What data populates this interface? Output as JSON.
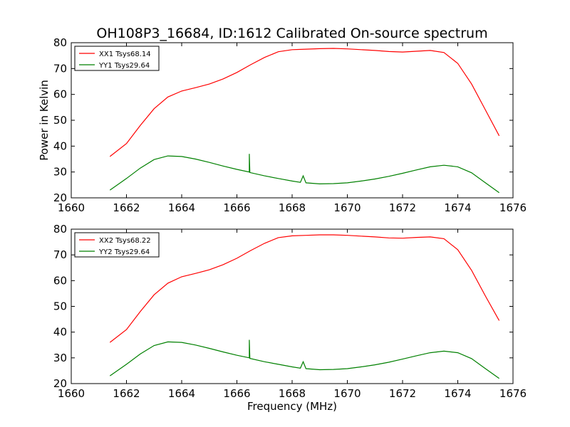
{
  "chart_data": {
    "type": "line",
    "title": "OH108P3_16684, ID:1612 Calibrated On-source spectrum",
    "xlabel": "Frequency (MHz)",
    "ylabel": "Power in Kelvin",
    "xlim": [
      1660,
      1676
    ],
    "ylim": [
      20,
      80
    ],
    "x_ticks": [
      1660,
      1662,
      1664,
      1666,
      1668,
      1670,
      1672,
      1674,
      1676
    ],
    "y_ticks": [
      20,
      30,
      40,
      50,
      60,
      70,
      80
    ],
    "grid": false,
    "legend_position": "upper-left",
    "panels": [
      {
        "series": [
          {
            "name": "XX1 Tsys68.14",
            "color": "#ff0000",
            "points": [
              [
                1661.4,
                36.0
              ],
              [
                1662.0,
                41.0
              ],
              [
                1662.5,
                48.0
              ],
              [
                1663.0,
                54.5
              ],
              [
                1663.5,
                59.0
              ],
              [
                1664.0,
                61.3
              ],
              [
                1664.5,
                62.6
              ],
              [
                1665.0,
                64.0
              ],
              [
                1665.5,
                66.0
              ],
              [
                1666.0,
                68.5
              ],
              [
                1666.5,
                71.5
              ],
              [
                1667.0,
                74.3
              ],
              [
                1667.5,
                76.5
              ],
              [
                1668.0,
                77.3
              ],
              [
                1668.5,
                77.5
              ],
              [
                1669.0,
                77.7
              ],
              [
                1669.5,
                77.8
              ],
              [
                1670.0,
                77.6
              ],
              [
                1670.5,
                77.3
              ],
              [
                1671.0,
                77.0
              ],
              [
                1671.5,
                76.6
              ],
              [
                1672.0,
                76.4
              ],
              [
                1672.5,
                76.7
              ],
              [
                1673.0,
                77.0
              ],
              [
                1673.5,
                76.2
              ],
              [
                1674.0,
                72.0
              ],
              [
                1674.5,
                64.0
              ],
              [
                1675.0,
                54.0
              ],
              [
                1675.5,
                44.0
              ]
            ]
          },
          {
            "name": "YY1 Tsys29.64",
            "color": "#008000",
            "points": [
              [
                1661.4,
                23.0
              ],
              [
                1662.0,
                27.5
              ],
              [
                1662.5,
                31.5
              ],
              [
                1663.0,
                34.8
              ],
              [
                1663.5,
                36.2
              ],
              [
                1664.0,
                36.0
              ],
              [
                1664.5,
                35.0
              ],
              [
                1665.0,
                33.7
              ],
              [
                1665.5,
                32.3
              ],
              [
                1666.0,
                31.0
              ],
              [
                1666.45,
                30.0
              ],
              [
                1666.45,
                37.0
              ],
              [
                1666.47,
                29.8
              ],
              [
                1667.0,
                28.5
              ],
              [
                1667.5,
                27.5
              ],
              [
                1668.0,
                26.5
              ],
              [
                1668.3,
                26.0
              ],
              [
                1668.4,
                28.5
              ],
              [
                1668.5,
                25.8
              ],
              [
                1669.0,
                25.4
              ],
              [
                1669.5,
                25.5
              ],
              [
                1670.0,
                25.8
              ],
              [
                1670.5,
                26.5
              ],
              [
                1671.0,
                27.3
              ],
              [
                1671.5,
                28.3
              ],
              [
                1672.0,
                29.5
              ],
              [
                1672.5,
                30.8
              ],
              [
                1673.0,
                32.0
              ],
              [
                1673.5,
                32.6
              ],
              [
                1674.0,
                32.0
              ],
              [
                1674.5,
                29.7
              ],
              [
                1675.0,
                25.8
              ],
              [
                1675.5,
                22.0
              ]
            ]
          }
        ]
      },
      {
        "series": [
          {
            "name": "XX2 Tsys68.22",
            "color": "#ff0000",
            "points": [
              [
                1661.4,
                36.0
              ],
              [
                1662.0,
                41.0
              ],
              [
                1662.5,
                48.0
              ],
              [
                1663.0,
                54.5
              ],
              [
                1663.5,
                59.0
              ],
              [
                1664.0,
                61.5
              ],
              [
                1664.5,
                62.8
              ],
              [
                1665.0,
                64.2
              ],
              [
                1665.5,
                66.2
              ],
              [
                1666.0,
                68.7
              ],
              [
                1666.5,
                71.7
              ],
              [
                1667.0,
                74.5
              ],
              [
                1667.5,
                76.7
              ],
              [
                1668.0,
                77.4
              ],
              [
                1668.5,
                77.6
              ],
              [
                1669.0,
                77.8
              ],
              [
                1669.5,
                77.8
              ],
              [
                1670.0,
                77.6
              ],
              [
                1670.5,
                77.3
              ],
              [
                1671.0,
                77.0
              ],
              [
                1671.5,
                76.6
              ],
              [
                1672.0,
                76.5
              ],
              [
                1672.5,
                76.8
              ],
              [
                1673.0,
                77.0
              ],
              [
                1673.5,
                76.3
              ],
              [
                1674.0,
                72.0
              ],
              [
                1674.5,
                64.0
              ],
              [
                1675.0,
                54.0
              ],
              [
                1675.5,
                44.5
              ]
            ]
          },
          {
            "name": "YY2 Tsys29.64",
            "color": "#008000",
            "points": [
              [
                1661.4,
                23.0
              ],
              [
                1662.0,
                27.5
              ],
              [
                1662.5,
                31.5
              ],
              [
                1663.0,
                34.8
              ],
              [
                1663.5,
                36.2
              ],
              [
                1664.0,
                36.0
              ],
              [
                1664.5,
                35.0
              ],
              [
                1665.0,
                33.7
              ],
              [
                1665.5,
                32.3
              ],
              [
                1666.0,
                31.0
              ],
              [
                1666.45,
                30.0
              ],
              [
                1666.45,
                37.0
              ],
              [
                1666.47,
                29.8
              ],
              [
                1667.0,
                28.5
              ],
              [
                1667.5,
                27.5
              ],
              [
                1668.0,
                26.5
              ],
              [
                1668.3,
                26.0
              ],
              [
                1668.4,
                28.5
              ],
              [
                1668.5,
                25.8
              ],
              [
                1669.0,
                25.4
              ],
              [
                1669.5,
                25.5
              ],
              [
                1670.0,
                25.8
              ],
              [
                1670.5,
                26.5
              ],
              [
                1671.0,
                27.3
              ],
              [
                1671.5,
                28.3
              ],
              [
                1672.0,
                29.5
              ],
              [
                1672.5,
                30.8
              ],
              [
                1673.0,
                32.0
              ],
              [
                1673.5,
                32.6
              ],
              [
                1674.0,
                32.0
              ],
              [
                1674.5,
                29.7
              ],
              [
                1675.0,
                25.8
              ],
              [
                1675.5,
                22.0
              ]
            ]
          }
        ]
      }
    ]
  }
}
